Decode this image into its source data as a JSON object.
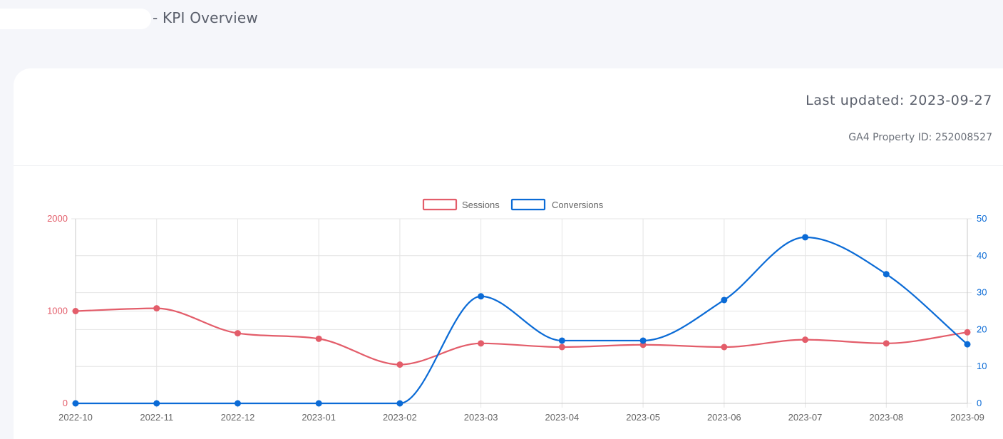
{
  "header": {
    "title": "- KPI Overview"
  },
  "card": {
    "last_updated": "Last updated: 2023-09-27",
    "property_id": "GA4 Property ID: 252008527"
  },
  "chart_data": {
    "type": "line",
    "x": [
      "2022-10",
      "2022-11",
      "2022-12",
      "2023-01",
      "2023-02",
      "2023-03",
      "2023-04",
      "2023-05",
      "2023-06",
      "2023-07",
      "2023-08",
      "2023-09"
    ],
    "series": [
      {
        "name": "Sessions",
        "axis": "left",
        "color": "#e35d6a",
        "values": [
          1000,
          1030,
          760,
          700,
          420,
          650,
          610,
          635,
          610,
          690,
          650,
          770
        ]
      },
      {
        "name": "Conversions",
        "axis": "right",
        "color": "#0b6bd6",
        "values": [
          0,
          0,
          0,
          0,
          0,
          29,
          17,
          17,
          28,
          45,
          35,
          16
        ]
      }
    ],
    "y_left": {
      "min": 0,
      "max": 2000,
      "ticks": [
        0,
        1000,
        2000
      ],
      "color": "#e35d6a"
    },
    "y_right": {
      "min": 0,
      "max": 50,
      "ticks": [
        0,
        10,
        20,
        30,
        40,
        50
      ],
      "color": "#0b6bd6"
    },
    "legend_position": "top-center",
    "grid": true,
    "smooth": true
  }
}
